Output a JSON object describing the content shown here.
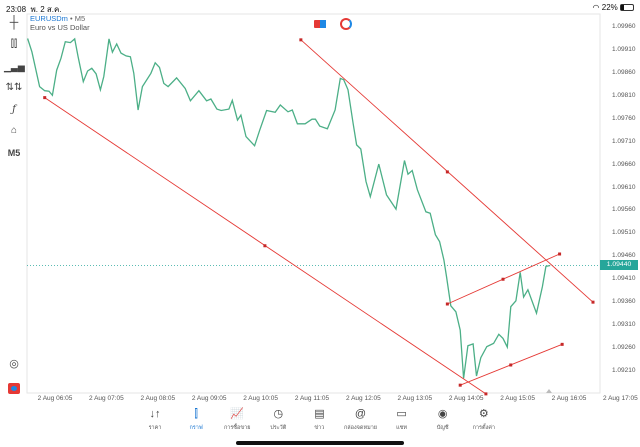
{
  "status_bar": {
    "time": "23:08",
    "date": "พ. 2 ส.ค.",
    "battery": "22%",
    "wifi_icon": "wifi-icon",
    "battery_icon": "battery-icon"
  },
  "header": {
    "symbol": "EURUSDm",
    "separator": "•",
    "timeframe": "M5",
    "description": "Euro vs US Dollar"
  },
  "toolbar": {
    "items": [
      "crosshair-icon",
      "chart-type-icon",
      "indicators-icon",
      "objects-icon",
      "function-icon",
      "shapes-icon"
    ],
    "timeframe_label": "M5"
  },
  "colors": {
    "price_line": "#4caf87",
    "trend_lines": "#e53935",
    "current_price": "#26a69a",
    "accent": "#1976d2"
  },
  "chart": {
    "current_price": "1.09440",
    "price_ticks": [
      "1.09960",
      "1.09910",
      "1.09860",
      "1.09810",
      "1.09760",
      "1.09710",
      "1.09660",
      "1.09610",
      "1.09560",
      "1.09510",
      "1.09460",
      "1.09410",
      "1.09360",
      "1.09310",
      "1.09260",
      "1.09210"
    ],
    "time_ticks": [
      "2 Aug 06:05",
      "2 Aug 07:05",
      "2 Aug 08:05",
      "2 Aug 09:05",
      "2 Aug 10:05",
      "2 Aug 11:05",
      "2 Aug 12:05",
      "2 Aug 13:05",
      "2 Aug 14:05",
      "2 Aug 15:05",
      "2 Aug 16:05",
      "2 Aug 17:05"
    ],
    "price_series": [
      [
        "05:33",
        1.09935
      ],
      [
        "05:38",
        1.09906
      ],
      [
        "05:47",
        1.0983
      ],
      [
        "05:53",
        1.09821
      ],
      [
        "05:58",
        1.0982
      ],
      [
        "06:02",
        1.09811
      ],
      [
        "06:07",
        1.09866
      ],
      [
        "06:12",
        1.09892
      ],
      [
        "06:17",
        1.09928
      ],
      [
        "06:23",
        1.09926
      ],
      [
        "06:28",
        1.09934
      ],
      [
        "06:32",
        1.09895
      ],
      [
        "06:38",
        1.09841
      ],
      [
        "06:43",
        1.09864
      ],
      [
        "06:48",
        1.0987
      ],
      [
        "06:53",
        1.09858
      ],
      [
        "06:58",
        1.09823
      ],
      [
        "07:02",
        1.09852
      ],
      [
        "07:08",
        1.09934
      ],
      [
        "07:12",
        1.09905
      ],
      [
        "07:17",
        1.09923
      ],
      [
        "07:22",
        1.09903
      ],
      [
        "07:28",
        1.09897
      ],
      [
        "07:33",
        1.09895
      ],
      [
        "07:37",
        1.09859
      ],
      [
        "07:42",
        1.09779
      ],
      [
        "07:47",
        1.0983
      ],
      [
        "07:57",
        1.09859
      ],
      [
        "08:02",
        1.09882
      ],
      [
        "08:07",
        1.09872
      ],
      [
        "08:12",
        1.09837
      ],
      [
        "08:17",
        1.0983
      ],
      [
        "08:27",
        1.09849
      ],
      [
        "08:37",
        1.09826
      ],
      [
        "08:43",
        1.09799
      ],
      [
        "08:53",
        1.09821
      ],
      [
        "09:02",
        1.09799
      ],
      [
        "09:07",
        1.09803
      ],
      [
        "09:14",
        1.09781
      ],
      [
        "09:19",
        1.09778
      ],
      [
        "09:28",
        1.09781
      ],
      [
        "09:32",
        1.098
      ],
      [
        "09:38",
        1.09757
      ],
      [
        "09:42",
        1.09768
      ],
      [
        "09:48",
        1.09721
      ],
      [
        "09:58",
        1.09701
      ],
      [
        "10:04",
        1.09735
      ],
      [
        "10:12",
        1.09778
      ],
      [
        "10:22",
        1.09774
      ],
      [
        "10:28",
        1.0979
      ],
      [
        "10:37",
        1.09775
      ],
      [
        "10:42",
        1.09779
      ],
      [
        "10:48",
        1.09749
      ],
      [
        "10:57",
        1.09749
      ],
      [
        "11:05",
        1.09759
      ],
      [
        "11:09",
        1.09759
      ],
      [
        "11:14",
        1.09744
      ],
      [
        "11:23",
        1.09738
      ],
      [
        "11:32",
        1.09779
      ],
      [
        "11:38",
        1.09848
      ],
      [
        "11:42",
        1.09845
      ],
      [
        "11:47",
        1.09823
      ],
      [
        "11:53",
        1.0975
      ],
      [
        "11:57",
        1.09703
      ],
      [
        "12:02",
        1.09694
      ],
      [
        "12:08",
        1.09623
      ],
      [
        "12:13",
        1.0959
      ],
      [
        "12:23",
        1.09661
      ],
      [
        "12:32",
        1.09594
      ],
      [
        "12:43",
        1.09563
      ],
      [
        "12:53",
        1.09669
      ],
      [
        "12:57",
        1.09639
      ],
      [
        "13:02",
        1.09647
      ],
      [
        "13:08",
        1.09605
      ],
      [
        "13:18",
        1.09557
      ],
      [
        "13:23",
        1.09554
      ],
      [
        "13:29",
        1.09507
      ],
      [
        "13:34",
        1.09492
      ],
      [
        "13:39",
        1.09452
      ],
      [
        "13:42",
        1.09416
      ],
      [
        "13:47",
        1.09352
      ],
      [
        "13:53",
        1.09339
      ],
      [
        "13:58",
        1.09299
      ],
      [
        "14:02",
        1.09194
      ],
      [
        "14:07",
        1.09265
      ],
      [
        "14:13",
        1.09269
      ],
      [
        "14:17",
        1.09199
      ],
      [
        "14:22",
        1.09239
      ],
      [
        "14:29",
        1.09263
      ],
      [
        "14:37",
        1.0927
      ],
      [
        "14:43",
        1.0929
      ],
      [
        "14:48",
        1.09281
      ],
      [
        "14:53",
        1.09262
      ],
      [
        "14:57",
        1.0935
      ],
      [
        "15:03",
        1.09363
      ],
      [
        "15:08",
        1.09425
      ],
      [
        "15:12",
        1.09371
      ],
      [
        "15:17",
        1.09387
      ],
      [
        "15:27",
        1.09336
      ],
      [
        "15:34",
        1.09394
      ],
      [
        "15:38",
        1.09438
      ],
      [
        "15:43",
        1.0944
      ]
    ],
    "trend_lines": [
      {
        "points": [
          [
            "10:52",
            1.09932
          ],
          [
            "13:43",
            1.09644
          ],
          [
            "16:33",
            1.0936
          ]
        ]
      },
      {
        "points": [
          [
            "05:53",
            1.09806
          ],
          [
            "10:10",
            1.09483
          ],
          [
            "14:28",
            1.0916
          ]
        ]
      },
      {
        "points": [
          [
            "13:43",
            1.09356
          ],
          [
            "14:48",
            1.0941
          ],
          [
            "15:54",
            1.09465
          ]
        ]
      },
      {
        "points": [
          [
            "13:58",
            1.09179
          ],
          [
            "14:57",
            1.09223
          ],
          [
            "15:57",
            1.09268
          ]
        ]
      }
    ]
  },
  "bottom_nav": [
    {
      "label": "ราคา",
      "icon": "quotes-icon",
      "glyph": "↓↑",
      "active": false
    },
    {
      "label": "กราฟ",
      "icon": "chart-icon",
      "glyph": "⫿",
      "active": true
    },
    {
      "label": "การซื้อขาย",
      "icon": "trade-icon",
      "glyph": "📈",
      "active": false
    },
    {
      "label": "ประวัติ",
      "icon": "history-icon",
      "glyph": "◷",
      "active": false
    },
    {
      "label": "ข่าว",
      "icon": "news-icon",
      "glyph": "▤",
      "active": false
    },
    {
      "label": "กล่องจดหมาย",
      "icon": "mailbox-icon",
      "glyph": "@",
      "active": false
    },
    {
      "label": "แชท",
      "icon": "chat-icon",
      "glyph": "▭",
      "active": false
    },
    {
      "label": "บัญชี",
      "icon": "account-icon",
      "glyph": "◉",
      "active": false
    },
    {
      "label": "การตั้งค่า",
      "icon": "settings-icon",
      "glyph": "⚙",
      "active": false
    }
  ]
}
